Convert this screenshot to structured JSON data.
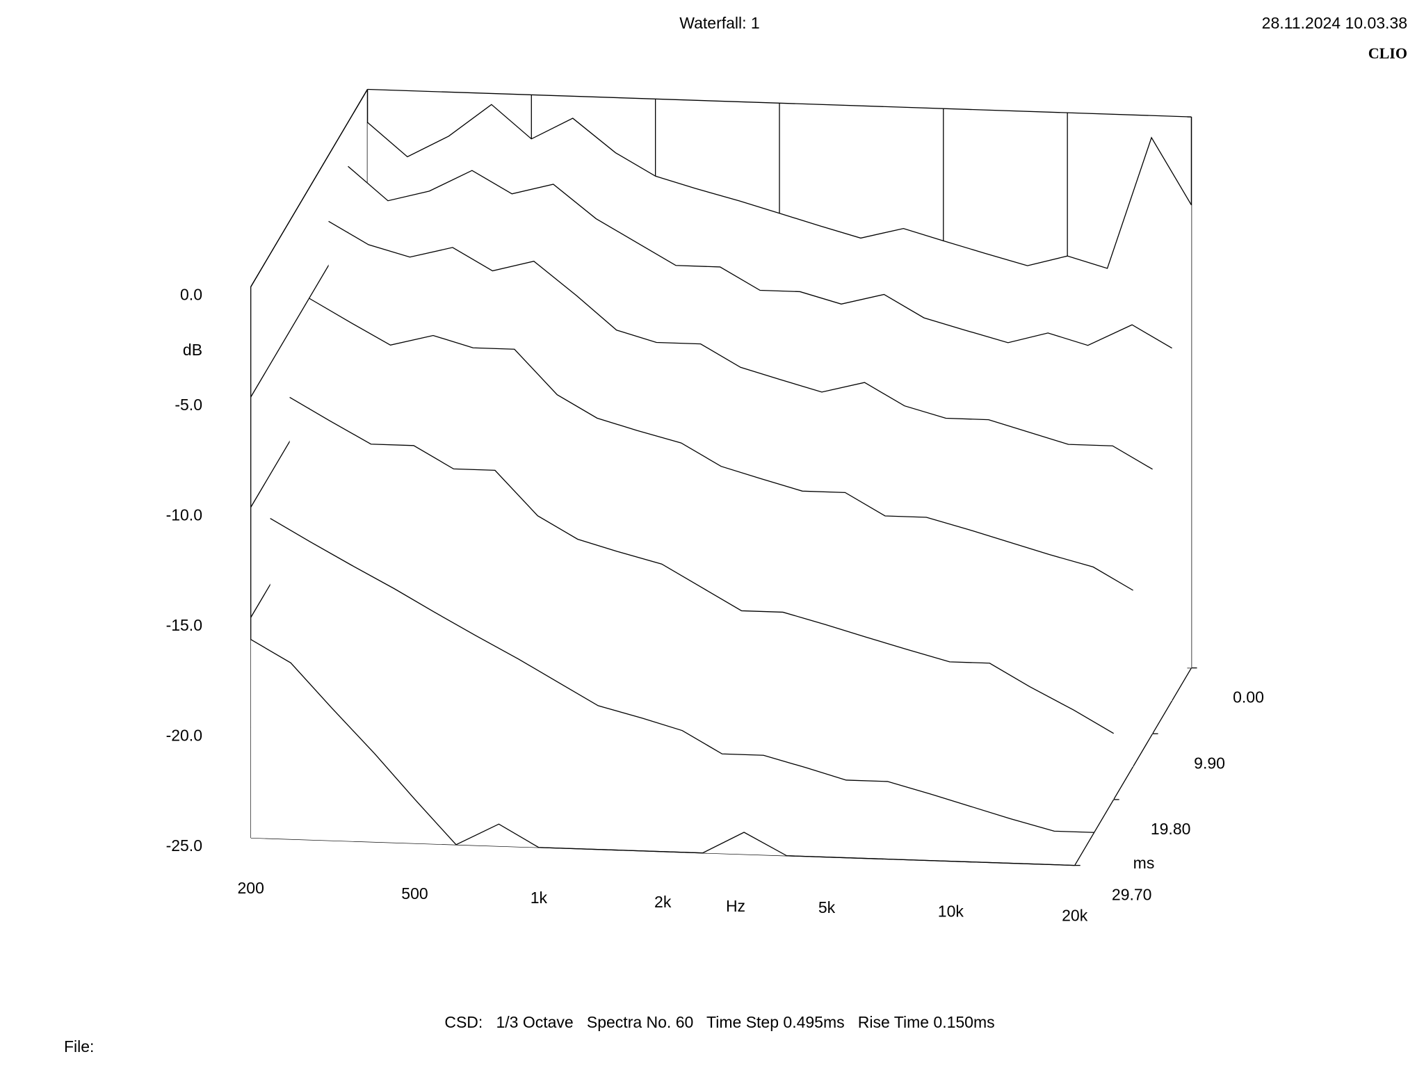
{
  "chart_data": {
    "type": "waterfall",
    "title": "Waterfall: 1",
    "date": "28.11.2024 10.03.38",
    "brand": "CLIO",
    "footer": "CSD:   1/3 Octave   Spectra No. 60   Time Step 0.495ms   Rise Time 0.150ms",
    "file_label": "File:",
    "xlabel": "Hz",
    "ylabel": "dB",
    "zlabel": "ms",
    "log_x": true,
    "color": "#000000",
    "xlim": [
      200,
      20000
    ],
    "ylim": [
      -25,
      0
    ],
    "zlim": [
      0,
      29.7
    ],
    "xticks": [
      200,
      500,
      {
        "value": 1000,
        "label": "1k"
      },
      {
        "value": 2000,
        "label": "2k"
      },
      {
        "value": 5000,
        "label": "5k"
      },
      {
        "value": 10000,
        "label": "10k"
      },
      {
        "value": 20000,
        "label": "20k"
      }
    ],
    "yticks": [
      {
        "value": 0,
        "label": "0.0"
      },
      {
        "value": -5,
        "label": "-5.0"
      },
      {
        "value": -10,
        "label": "-10.0"
      },
      {
        "value": -15,
        "label": "-15.0"
      },
      {
        "value": -20,
        "label": "-20.0"
      },
      {
        "value": -25,
        "label": "-25.0"
      }
    ],
    "zticks": [
      {
        "value": 0,
        "label": "0.00"
      },
      {
        "value": 9.9,
        "label": "9.90"
      },
      {
        "value": 19.8,
        "label": "19.80"
      },
      {
        "value": 29.7,
        "label": "29.70"
      }
    ],
    "x": [
      200,
      250,
      315,
      400,
      500,
      630,
      800,
      1000,
      1250,
      1600,
      2000,
      2500,
      3150,
      4000,
      5000,
      6300,
      8000,
      10000,
      12500,
      16000,
      20000
    ],
    "spectra": [
      {
        "time": 0,
        "values": [
          -1.5,
          -3,
          -2,
          -0.5,
          -2,
          -1,
          -2.5,
          -3.5,
          -4,
          -4.5,
          -5,
          -5.5,
          -6,
          -5.5,
          -6,
          -6.5,
          -7,
          -6.5,
          -7,
          -1,
          -4
        ]
      },
      {
        "time": 4.95,
        "values": [
          -2,
          -3.5,
          -3,
          -2,
          -3,
          -2.5,
          -4,
          -5,
          -6,
          -6,
          -7,
          -7,
          -7.5,
          -7,
          -8,
          -8.5,
          -9,
          -8.5,
          -9,
          -8,
          -9
        ]
      },
      {
        "time": 9.9,
        "values": [
          -3,
          -4,
          -4.5,
          -4,
          -5,
          -4.5,
          -6,
          -7.5,
          -8,
          -8,
          -9,
          -9.5,
          -10,
          -9.5,
          -10.5,
          -11,
          -11,
          -11.5,
          -12,
          -12,
          -13
        ]
      },
      {
        "time": 14.85,
        "values": [
          -5,
          -6,
          -7,
          -6.5,
          -7,
          -7,
          -9,
          -10,
          -10.5,
          -11,
          -12,
          -12.5,
          -13,
          -13,
          -14,
          -14,
          -14.5,
          -15,
          -15.5,
          -16,
          -17
        ]
      },
      {
        "time": 19.8,
        "values": [
          -8,
          -9,
          -10,
          -10,
          -11,
          -11,
          -13,
          -14,
          -14.5,
          -15,
          -16,
          -17,
          -17,
          -17.5,
          -18,
          -18.5,
          -19,
          -19,
          -20,
          -21,
          -22
        ]
      },
      {
        "time": 24.75,
        "values": [
          -12,
          -13,
          -14,
          -15,
          -16,
          -17,
          -18,
          -19,
          -20,
          -20.5,
          -21,
          -22,
          -22,
          -22.5,
          -23,
          -23,
          -23.5,
          -24,
          -24.5,
          -25,
          -25
        ]
      },
      {
        "time": 29.7,
        "values": [
          -16,
          -17,
          -19,
          -21,
          -23,
          -25,
          -24,
          -25,
          -25,
          -25,
          -25,
          -25,
          -24,
          -25,
          -25,
          -25,
          -25,
          -25,
          -25,
          -25,
          -25
        ]
      }
    ]
  }
}
